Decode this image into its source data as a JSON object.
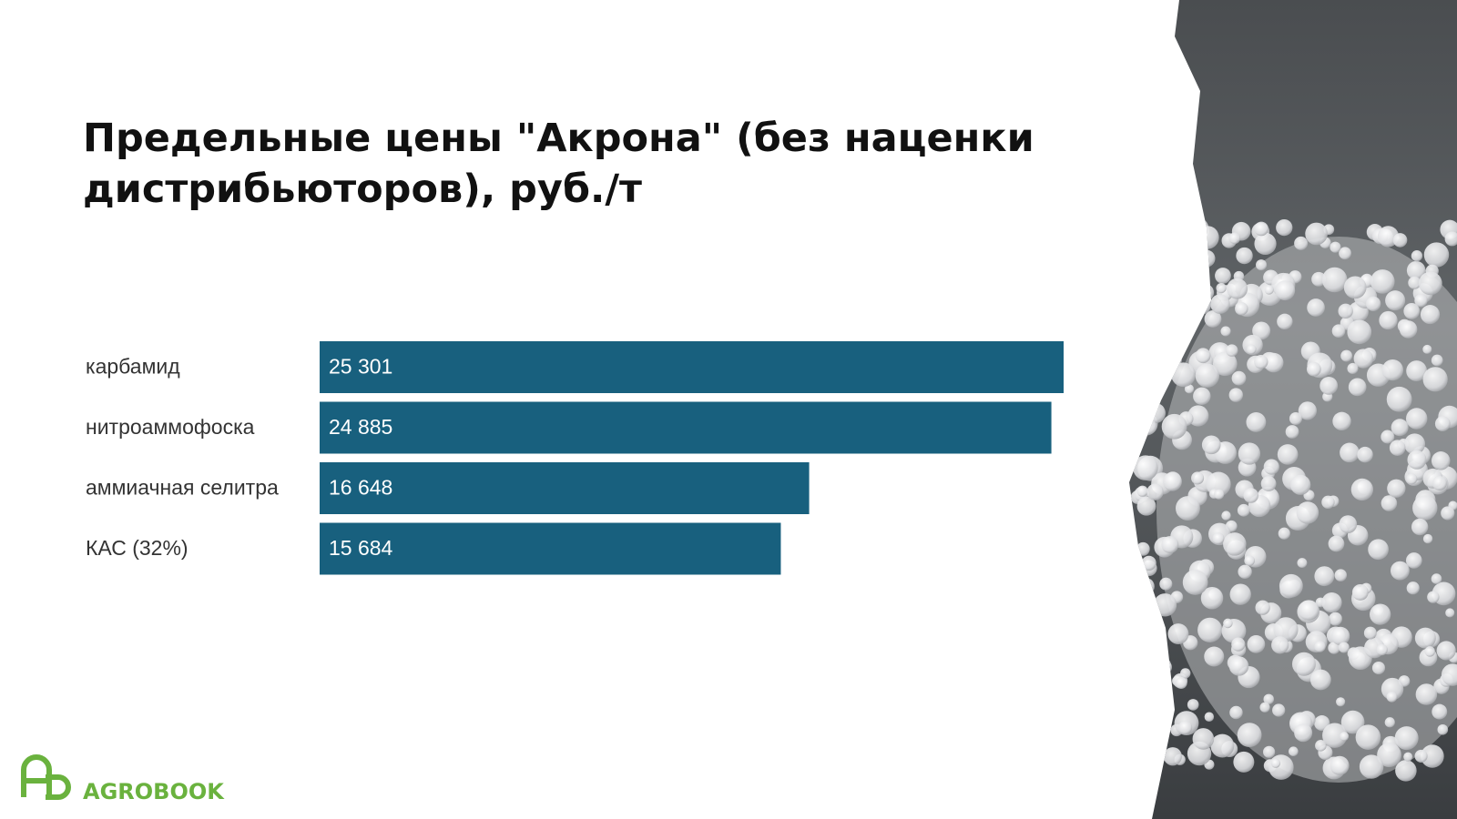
{
  "chart_data": {
    "type": "bar",
    "orientation": "horizontal",
    "title": "Предельные цены \"Акрона\" (без наценки дистрибьюторов), руб./т",
    "categories": [
      "карбамид",
      "нитроаммофоска",
      "аммиачная селитра",
      "КАС (32%)"
    ],
    "values": [
      25301,
      24885,
      16648,
      15684
    ],
    "value_labels": [
      "25 301",
      "24 885",
      "16 648",
      "15 684"
    ],
    "color": "#18607e"
  },
  "logo": "AGROBOOK"
}
